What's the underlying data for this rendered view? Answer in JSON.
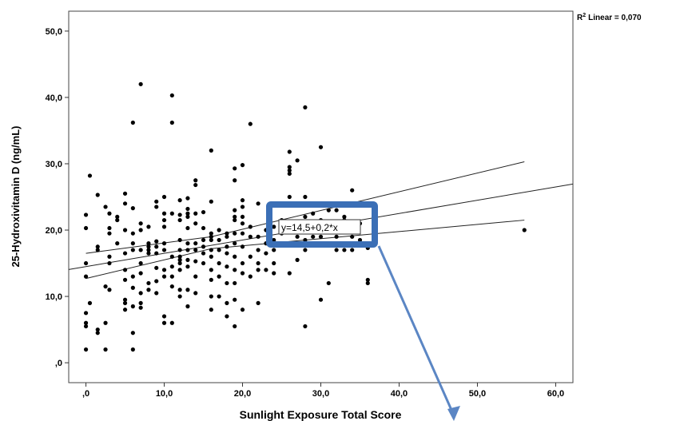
{
  "chart_data": {
    "type": "scatter",
    "title": "",
    "xlabel": "Sunlight Exposure Total Score",
    "ylabel": "25-Hydroxivitamin D (ng/mL)",
    "xlim": [
      -2.2,
      62.2
    ],
    "ylim": [
      -3,
      53
    ],
    "x_ticks": [
      0,
      10,
      20,
      30,
      40,
      50,
      60
    ],
    "x_tick_labels": [
      ",0",
      "10,0",
      "20,0",
      "30,0",
      "40,0",
      "50,0",
      "60,0"
    ],
    "y_ticks": [
      0,
      10,
      20,
      30,
      40,
      50
    ],
    "y_tick_labels": [
      ",0",
      "10,0",
      "20,0",
      "30,0",
      "40,0",
      "50,0"
    ],
    "r2_label": "Linear = 0,070",
    "r2_prefix": "R",
    "r2_superscript": "2",
    "equation": "y=14,5+0,2*x",
    "fit_line": {
      "intercept": 14.5,
      "slope": 0.2
    },
    "ci_upper": [
      [
        0,
        16.5
      ],
      [
        16,
        19.0
      ],
      [
        56,
        30.3
      ]
    ],
    "ci_lower": [
      [
        0,
        12.7
      ],
      [
        16,
        17.2
      ],
      [
        56,
        21.5
      ]
    ],
    "highlight_color": "#3b6fb6",
    "arrow_color": "#5b86c4",
    "points": [
      [
        0,
        22.3
      ],
      [
        0,
        20.3
      ],
      [
        0,
        15
      ],
      [
        0,
        13
      ],
      [
        0,
        7.5
      ],
      [
        0,
        6
      ],
      [
        0,
        5.5
      ],
      [
        0,
        2
      ],
      [
        0.5,
        28.2
      ],
      [
        0.5,
        9
      ],
      [
        1.5,
        25.3
      ],
      [
        1.5,
        17.5
      ],
      [
        1.5,
        17
      ],
      [
        1.5,
        5
      ],
      [
        1.5,
        4.5
      ],
      [
        2.5,
        23.5
      ],
      [
        2.5,
        11.5
      ],
      [
        2.5,
        6
      ],
      [
        2.5,
        2
      ],
      [
        3,
        22.5
      ],
      [
        3,
        20.3
      ],
      [
        3,
        19.5
      ],
      [
        3,
        16
      ],
      [
        3,
        15
      ],
      [
        3,
        11
      ],
      [
        4,
        22
      ],
      [
        4,
        21.5
      ],
      [
        4,
        18
      ],
      [
        5,
        25.5
      ],
      [
        5,
        24
      ],
      [
        5,
        20
      ],
      [
        5,
        16.5
      ],
      [
        5,
        14
      ],
      [
        5,
        12.5
      ],
      [
        5,
        9.5
      ],
      [
        5,
        9
      ],
      [
        5,
        8
      ],
      [
        6,
        36.2
      ],
      [
        6,
        23.3
      ],
      [
        6,
        19.5
      ],
      [
        6,
        18
      ],
      [
        6,
        17
      ],
      [
        6,
        13
      ],
      [
        6,
        11.3
      ],
      [
        6,
        8.5
      ],
      [
        6,
        4.5
      ],
      [
        6,
        2
      ],
      [
        7,
        42
      ],
      [
        7,
        21
      ],
      [
        7,
        20
      ],
      [
        7,
        17
      ],
      [
        7,
        15
      ],
      [
        7,
        13.5
      ],
      [
        7,
        10.5
      ],
      [
        7,
        9
      ],
      [
        7,
        8.3
      ],
      [
        8,
        20.5
      ],
      [
        8,
        18
      ],
      [
        8,
        17.5
      ],
      [
        8,
        17
      ],
      [
        8,
        16.5
      ],
      [
        8,
        12
      ],
      [
        8,
        11
      ],
      [
        9,
        24.3
      ],
      [
        9,
        23.5
      ],
      [
        9,
        18.3
      ],
      [
        9,
        17.5
      ],
      [
        9,
        16.5
      ],
      [
        9,
        14.3
      ],
      [
        9,
        12.3
      ],
      [
        9,
        10.5
      ],
      [
        10,
        25
      ],
      [
        10,
        22.5
      ],
      [
        10,
        21.5
      ],
      [
        10,
        20.5
      ],
      [
        10,
        18
      ],
      [
        10,
        17
      ],
      [
        10,
        14
      ],
      [
        10,
        13
      ],
      [
        10,
        7
      ],
      [
        10,
        6
      ],
      [
        11,
        40.3
      ],
      [
        11,
        36.2
      ],
      [
        11,
        22.5
      ],
      [
        11,
        16
      ],
      [
        11,
        14.5
      ],
      [
        11,
        13
      ],
      [
        11,
        11.5
      ],
      [
        11,
        6
      ],
      [
        12,
        24.5
      ],
      [
        12,
        22.3
      ],
      [
        12,
        21.5
      ],
      [
        12,
        18.5
      ],
      [
        12,
        17
      ],
      [
        12,
        16
      ],
      [
        12,
        15.5
      ],
      [
        12,
        15
      ],
      [
        12,
        14
      ],
      [
        12,
        11
      ],
      [
        12,
        10
      ],
      [
        13,
        24.8
      ],
      [
        13,
        23.2
      ],
      [
        13,
        22.5
      ],
      [
        13,
        22
      ],
      [
        13,
        20.3
      ],
      [
        13,
        18
      ],
      [
        13,
        17
      ],
      [
        13,
        15.5
      ],
      [
        13,
        14.5
      ],
      [
        13,
        11
      ],
      [
        13,
        8.5
      ],
      [
        14,
        27.5
      ],
      [
        14,
        26.8
      ],
      [
        14,
        22.5
      ],
      [
        14,
        21
      ],
      [
        14,
        18
      ],
      [
        14,
        17
      ],
      [
        14,
        15.3
      ],
      [
        14,
        13
      ],
      [
        14,
        10.5
      ],
      [
        15,
        22.7
      ],
      [
        15,
        20.3
      ],
      [
        15,
        18.5
      ],
      [
        15,
        17.5
      ],
      [
        15,
        16.5
      ],
      [
        15,
        15
      ],
      [
        16,
        32
      ],
      [
        16,
        24.3
      ],
      [
        16,
        19.5
      ],
      [
        16,
        19
      ],
      [
        16,
        18.5
      ],
      [
        16,
        17
      ],
      [
        16,
        16
      ],
      [
        16,
        14
      ],
      [
        16,
        12.5
      ],
      [
        16,
        10
      ],
      [
        16,
        8
      ],
      [
        17,
        20
      ],
      [
        17,
        18.5
      ],
      [
        17,
        17
      ],
      [
        17,
        15
      ],
      [
        17,
        13
      ],
      [
        17,
        10
      ],
      [
        18,
        19.5
      ],
      [
        18,
        19
      ],
      [
        18,
        17.5
      ],
      [
        18,
        16.5
      ],
      [
        18,
        14.5
      ],
      [
        18,
        12
      ],
      [
        18,
        9
      ],
      [
        18,
        7
      ],
      [
        19,
        29.3
      ],
      [
        19,
        27.5
      ],
      [
        19,
        23
      ],
      [
        19,
        22
      ],
      [
        19,
        21.5
      ],
      [
        19,
        19.5
      ],
      [
        19,
        18
      ],
      [
        19,
        16
      ],
      [
        19,
        14
      ],
      [
        19,
        12
      ],
      [
        19,
        9.5
      ],
      [
        19,
        5.5
      ],
      [
        20,
        29.8
      ],
      [
        20,
        24.5
      ],
      [
        20,
        23.5
      ],
      [
        20,
        22
      ],
      [
        20,
        21
      ],
      [
        20,
        19.5
      ],
      [
        20,
        17.5
      ],
      [
        20,
        15
      ],
      [
        20,
        13.5
      ],
      [
        20,
        8
      ],
      [
        21,
        36
      ],
      [
        21,
        20.5
      ],
      [
        21,
        19
      ],
      [
        21,
        16
      ],
      [
        21,
        13
      ],
      [
        22,
        24
      ],
      [
        22,
        19
      ],
      [
        22,
        17
      ],
      [
        22,
        15
      ],
      [
        22,
        14
      ],
      [
        22,
        9
      ],
      [
        23,
        20
      ],
      [
        23,
        18
      ],
      [
        23,
        16.5
      ],
      [
        23,
        14
      ],
      [
        24,
        24
      ],
      [
        24,
        20.5
      ],
      [
        24,
        18.5
      ],
      [
        24,
        17
      ],
      [
        24,
        15
      ],
      [
        24,
        13.5
      ],
      [
        25,
        21.5
      ],
      [
        25,
        19.5
      ],
      [
        25,
        18
      ],
      [
        26,
        31.8
      ],
      [
        26,
        29.5
      ],
      [
        26,
        29
      ],
      [
        26,
        28.5
      ],
      [
        26,
        25
      ],
      [
        26,
        20
      ],
      [
        26,
        13.5
      ],
      [
        27,
        30.5
      ],
      [
        27,
        20.5
      ],
      [
        27,
        19
      ],
      [
        27,
        15.5
      ],
      [
        28,
        38.5
      ],
      [
        28,
        25
      ],
      [
        28,
        22
      ],
      [
        28,
        20
      ],
      [
        28,
        18.5
      ],
      [
        28,
        17
      ],
      [
        28,
        5.5
      ],
      [
        29,
        22.5
      ],
      [
        29,
        20
      ],
      [
        29,
        19
      ],
      [
        30,
        32.5
      ],
      [
        30,
        21.5
      ],
      [
        30,
        19
      ],
      [
        30,
        9.5
      ],
      [
        31,
        23
      ],
      [
        31,
        20
      ],
      [
        31,
        12
      ],
      [
        32,
        24
      ],
      [
        32,
        23
      ],
      [
        32,
        20.5
      ],
      [
        32,
        19
      ],
      [
        32,
        17
      ],
      [
        33,
        22
      ],
      [
        33,
        21.5
      ],
      [
        33,
        17
      ],
      [
        34,
        26
      ],
      [
        34,
        20
      ],
      [
        34,
        19
      ],
      [
        34,
        17
      ],
      [
        35,
        21
      ],
      [
        35,
        18.5
      ],
      [
        36,
        18
      ],
      [
        36,
        17.3
      ],
      [
        36,
        12.5
      ],
      [
        36,
        12
      ],
      [
        56,
        20
      ]
    ]
  }
}
